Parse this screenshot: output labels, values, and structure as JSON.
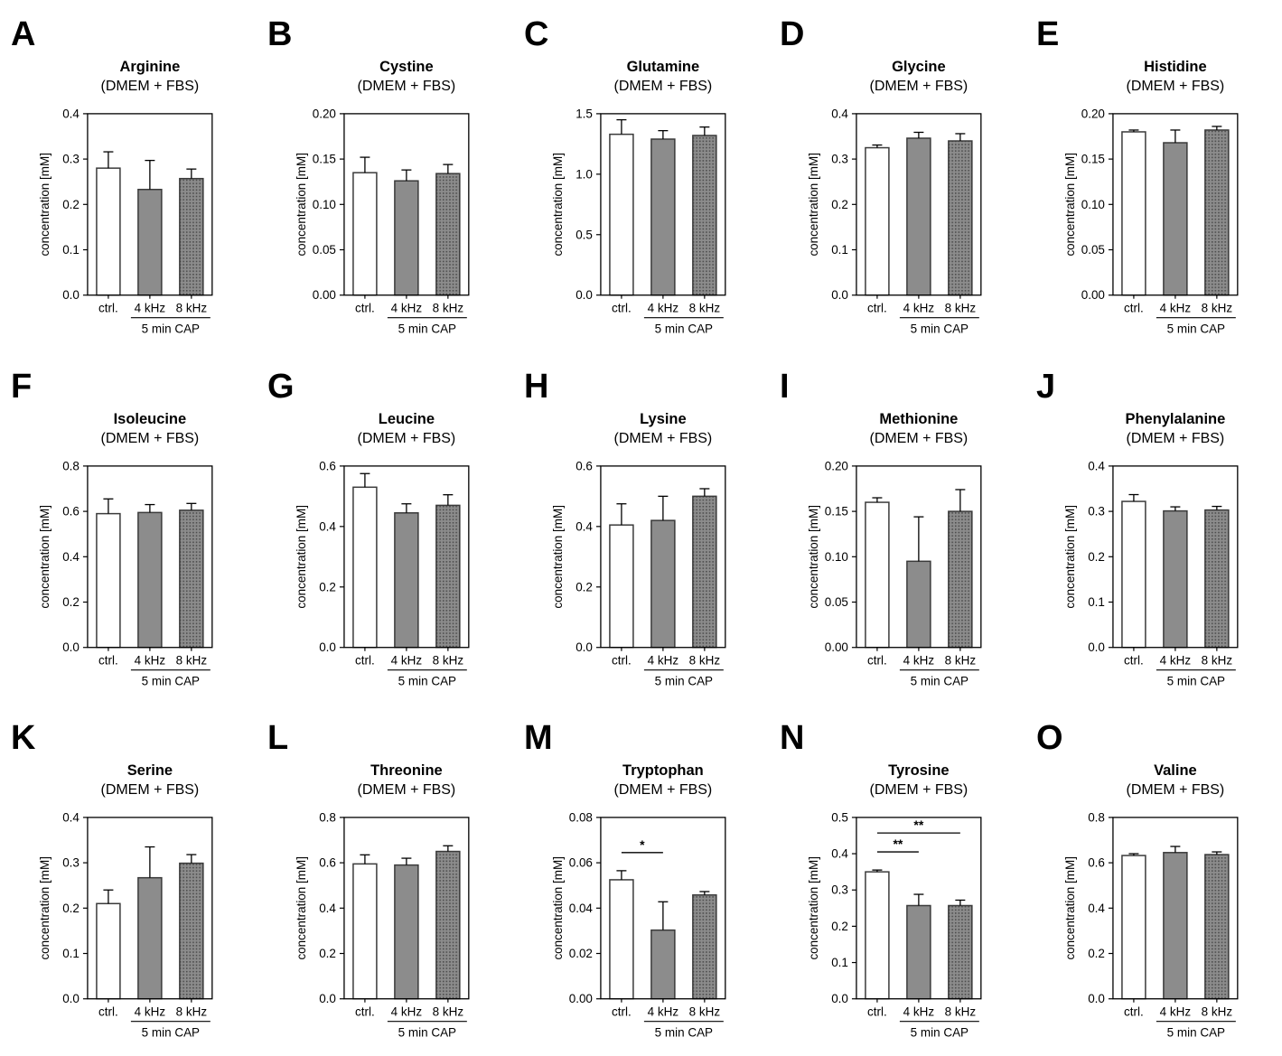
{
  "figure": {
    "background": "#ffffff",
    "axis_color": "#000000",
    "bar_border_color": "#3a3a3a",
    "bar_fill_white": "#ffffff",
    "bar_fill_gray": "#8c8c8c",
    "bar_dot_color": "#4d4d4d",
    "error_bar_color": "#000000",
    "x_categories": [
      "ctrl.",
      "4 kHz",
      "8 kHz"
    ],
    "group_label": "5 min CAP",
    "ylabel": "concentration [mM]",
    "bar_styles": [
      "white",
      "solid",
      "dotted"
    ]
  },
  "chart_data": [
    {
      "panel": "A",
      "type": "bar",
      "title": "Arginine",
      "subtitle": "(DMEM + FBS)",
      "ylabel": "concentration [mM]",
      "categories": [
        "ctrl.",
        "4 kHz",
        "8 kHz"
      ],
      "values": [
        0.28,
        0.233,
        0.257
      ],
      "errors": [
        0.036,
        0.064,
        0.021
      ],
      "ylim": [
        0,
        0.4
      ],
      "yticks": [
        "0.0",
        "0.1",
        "0.2",
        "0.3",
        "0.4"
      ],
      "group_label": "5 min CAP",
      "significance": []
    },
    {
      "panel": "B",
      "type": "bar",
      "title": "Cystine",
      "subtitle": "(DMEM + FBS)",
      "ylabel": "concentration [mM]",
      "categories": [
        "ctrl.",
        "4 kHz",
        "8 kHz"
      ],
      "values": [
        0.135,
        0.126,
        0.134
      ],
      "errors": [
        0.017,
        0.012,
        0.01
      ],
      "ylim": [
        0,
        0.2
      ],
      "yticks": [
        "0.00",
        "0.05",
        "0.10",
        "0.15",
        "0.20"
      ],
      "group_label": "5 min CAP",
      "significance": []
    },
    {
      "panel": "C",
      "type": "bar",
      "title": "Glutamine",
      "subtitle": "(DMEM + FBS)",
      "ylabel": "concentration [mM]",
      "categories": [
        "ctrl.",
        "4 kHz",
        "8 kHz"
      ],
      "values": [
        1.33,
        1.29,
        1.32
      ],
      "errors": [
        0.12,
        0.07,
        0.07
      ],
      "ylim": [
        0,
        1.5
      ],
      "yticks": [
        "0.0",
        "0.5",
        "1.0",
        "1.5"
      ],
      "group_label": "5 min CAP",
      "significance": []
    },
    {
      "panel": "D",
      "type": "bar",
      "title": "Glycine",
      "subtitle": "(DMEM + FBS)",
      "ylabel": "concentration [mM]",
      "categories": [
        "ctrl.",
        "4 kHz",
        "8 kHz"
      ],
      "values": [
        0.325,
        0.346,
        0.34
      ],
      "errors": [
        0.006,
        0.013,
        0.016
      ],
      "ylim": [
        0,
        0.4
      ],
      "yticks": [
        "0.0",
        "0.1",
        "0.2",
        "0.3",
        "0.4"
      ],
      "group_label": "5 min CAP",
      "significance": []
    },
    {
      "panel": "E",
      "type": "bar",
      "title": "Histidine",
      "subtitle": "(DMEM + FBS)",
      "ylabel": "concentration [mM]",
      "categories": [
        "ctrl.",
        "4 kHz",
        "8 kHz"
      ],
      "values": [
        0.18,
        0.168,
        0.182
      ],
      "errors": [
        0.002,
        0.014,
        0.004
      ],
      "ylim": [
        0,
        0.2
      ],
      "yticks": [
        "0.00",
        "0.05",
        "0.10",
        "0.15",
        "0.20"
      ],
      "group_label": "5 min CAP",
      "significance": []
    },
    {
      "panel": "F",
      "type": "bar",
      "title": "Isoleucine",
      "subtitle": "(DMEM + FBS)",
      "ylabel": "concentration [mM]",
      "categories": [
        "ctrl.",
        "4 kHz",
        "8 kHz"
      ],
      "values": [
        0.59,
        0.595,
        0.605
      ],
      "errors": [
        0.065,
        0.035,
        0.03
      ],
      "ylim": [
        0,
        0.8
      ],
      "yticks": [
        "0.0",
        "0.2",
        "0.4",
        "0.6",
        "0.8"
      ],
      "group_label": "5 min CAP",
      "significance": []
    },
    {
      "panel": "G",
      "type": "bar",
      "title": "Leucine",
      "subtitle": "(DMEM + FBS)",
      "ylabel": "concentration [mM]",
      "categories": [
        "ctrl.",
        "4 kHz",
        "8 kHz"
      ],
      "values": [
        0.53,
        0.445,
        0.47
      ],
      "errors": [
        0.045,
        0.03,
        0.035
      ],
      "ylim": [
        0,
        0.6
      ],
      "yticks": [
        "0.0",
        "0.2",
        "0.4",
        "0.6"
      ],
      "group_label": "5 min CAP",
      "significance": []
    },
    {
      "panel": "H",
      "type": "bar",
      "title": "Lysine",
      "subtitle": "(DMEM + FBS)",
      "ylabel": "concentration [mM]",
      "categories": [
        "ctrl.",
        "4 kHz",
        "8 kHz"
      ],
      "values": [
        0.405,
        0.42,
        0.5
      ],
      "errors": [
        0.07,
        0.08,
        0.025
      ],
      "ylim": [
        0,
        0.6
      ],
      "yticks": [
        "0.0",
        "0.2",
        "0.4",
        "0.6"
      ],
      "group_label": "5 min CAP",
      "significance": []
    },
    {
      "panel": "I",
      "type": "bar",
      "title": "Methionine",
      "subtitle": "(DMEM + FBS)",
      "ylabel": "concentration [mM]",
      "categories": [
        "ctrl.",
        "4 kHz",
        "8 kHz"
      ],
      "values": [
        0.16,
        0.095,
        0.15
      ],
      "errors": [
        0.005,
        0.049,
        0.024
      ],
      "ylim": [
        0,
        0.2
      ],
      "yticks": [
        "0.00",
        "0.05",
        "0.10",
        "0.15",
        "0.20"
      ],
      "group_label": "5 min CAP",
      "significance": []
    },
    {
      "panel": "J",
      "type": "bar",
      "title": "Phenylalanine",
      "subtitle": "(DMEM + FBS)",
      "ylabel": "concentration [mM]",
      "categories": [
        "ctrl.",
        "4 kHz",
        "8 kHz"
      ],
      "values": [
        0.322,
        0.301,
        0.303
      ],
      "errors": [
        0.015,
        0.009,
        0.008
      ],
      "ylim": [
        0,
        0.4
      ],
      "yticks": [
        "0.0",
        "0.1",
        "0.2",
        "0.3",
        "0.4"
      ],
      "group_label": "5 min CAP",
      "significance": []
    },
    {
      "panel": "K",
      "type": "bar",
      "title": "Serine",
      "subtitle": "(DMEM + FBS)",
      "ylabel": "concentration [mM]",
      "categories": [
        "ctrl.",
        "4 kHz",
        "8 kHz"
      ],
      "values": [
        0.21,
        0.267,
        0.299
      ],
      "errors": [
        0.03,
        0.068,
        0.019
      ],
      "ylim": [
        0,
        0.4
      ],
      "yticks": [
        "0.0",
        "0.1",
        "0.2",
        "0.3",
        "0.4"
      ],
      "group_label": "5 min CAP",
      "significance": []
    },
    {
      "panel": "L",
      "type": "bar",
      "title": "Threonine",
      "subtitle": "(DMEM + FBS)",
      "ylabel": "concentration [mM]",
      "categories": [
        "ctrl.",
        "4 kHz",
        "8 kHz"
      ],
      "values": [
        0.595,
        0.59,
        0.65
      ],
      "errors": [
        0.04,
        0.03,
        0.025
      ],
      "ylim": [
        0,
        0.8
      ],
      "yticks": [
        "0.0",
        "0.2",
        "0.4",
        "0.6",
        "0.8"
      ],
      "group_label": "5 min CAP",
      "significance": []
    },
    {
      "panel": "M",
      "type": "bar",
      "title": "Tryptophan",
      "subtitle": "(DMEM + FBS)",
      "ylabel": "concentration [mM]",
      "categories": [
        "ctrl.",
        "4 kHz",
        "8 kHz"
      ],
      "values": [
        0.0525,
        0.0303,
        0.0458
      ],
      "errors": [
        0.004,
        0.0125,
        0.0015
      ],
      "ylim": [
        0,
        0.08
      ],
      "yticks": [
        "0.00",
        "0.02",
        "0.04",
        "0.06",
        "0.08"
      ],
      "group_label": "5 min CAP",
      "significance": [
        {
          "from": 0,
          "to": 1,
          "label": "*",
          "y": 0.0645
        }
      ]
    },
    {
      "panel": "N",
      "type": "bar",
      "title": "Tyrosine",
      "subtitle": "(DMEM + FBS)",
      "ylabel": "concentration [mM]",
      "categories": [
        "ctrl.",
        "4 kHz",
        "8 kHz"
      ],
      "values": [
        0.35,
        0.257,
        0.257
      ],
      "errors": [
        0.005,
        0.031,
        0.015
      ],
      "ylim": [
        0,
        0.5
      ],
      "yticks": [
        "0.0",
        "0.1",
        "0.2",
        "0.3",
        "0.4",
        "0.5"
      ],
      "group_label": "5 min CAP",
      "significance": [
        {
          "from": 0,
          "to": 1,
          "label": "**",
          "y": 0.405
        },
        {
          "from": 0,
          "to": 2,
          "label": "**",
          "y": 0.457
        }
      ]
    },
    {
      "panel": "O",
      "type": "bar",
      "title": "Valine",
      "subtitle": "(DMEM + FBS)",
      "ylabel": "concentration [mM]",
      "categories": [
        "ctrl.",
        "4 kHz",
        "8 kHz"
      ],
      "values": [
        0.632,
        0.645,
        0.636
      ],
      "errors": [
        0.008,
        0.027,
        0.012
      ],
      "ylim": [
        0,
        0.8
      ],
      "yticks": [
        "0.0",
        "0.2",
        "0.4",
        "0.6",
        "0.8"
      ],
      "group_label": "5 min CAP",
      "significance": []
    }
  ]
}
